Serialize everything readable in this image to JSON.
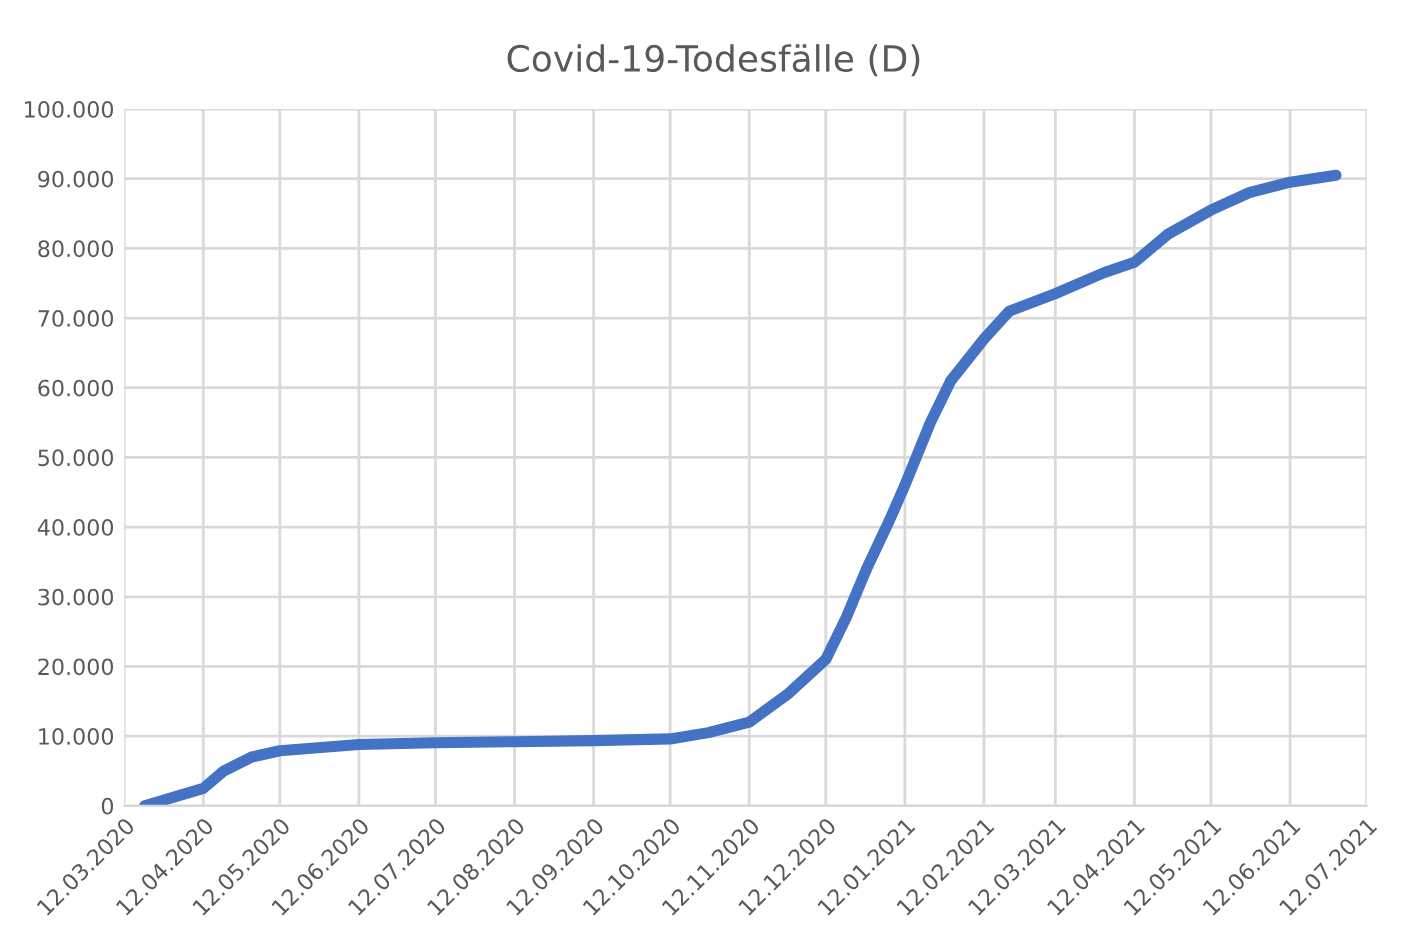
{
  "chart_data": {
    "type": "line",
    "title": "Covid-19-Todesfälle (D)",
    "x": [
      "2020-03-20",
      "2020-04-12",
      "2020-04-20",
      "2020-05-01",
      "2020-05-12",
      "2020-06-12",
      "2020-07-12",
      "2020-08-12",
      "2020-09-12",
      "2020-10-12",
      "2020-10-27",
      "2020-11-12",
      "2020-11-27",
      "2020-12-12",
      "2020-12-20",
      "2020-12-28",
      "2021-01-06",
      "2021-01-12",
      "2021-01-22",
      "2021-01-30",
      "2021-02-12",
      "2021-02-22",
      "2021-03-12",
      "2021-03-31",
      "2021-04-12",
      "2021-04-25",
      "2021-05-12",
      "2021-05-27",
      "2021-06-12",
      "2021-06-30"
    ],
    "series": [
      {
        "color": "#4472c4",
        "values": [
          0,
          2500,
          5000,
          7000,
          7900,
          8800,
          9050,
          9200,
          9350,
          9600,
          10500,
          12000,
          16000,
          21000,
          27000,
          34000,
          41000,
          46000,
          55000,
          61000,
          67000,
          71000,
          73500,
          76500,
          78000,
          82000,
          85500,
          88000,
          89500,
          90500
        ]
      }
    ],
    "xlim": [
      "2020-03-12",
      "2021-07-12"
    ],
    "xticks": [
      {
        "value": "2020-03-12",
        "label": "12.03.2020"
      },
      {
        "value": "2020-04-12",
        "label": "12.04.2020"
      },
      {
        "value": "2020-05-12",
        "label": "12.05.2020"
      },
      {
        "value": "2020-06-12",
        "label": "12.06.2020"
      },
      {
        "value": "2020-07-12",
        "label": "12.07.2020"
      },
      {
        "value": "2020-08-12",
        "label": "12.08.2020"
      },
      {
        "value": "2020-09-12",
        "label": "12.09.2020"
      },
      {
        "value": "2020-10-12",
        "label": "12.10.2020"
      },
      {
        "value": "2020-11-12",
        "label": "12.11.2020"
      },
      {
        "value": "2020-12-12",
        "label": "12.12.2020"
      },
      {
        "value": "2021-01-12",
        "label": "12.01.2021"
      },
      {
        "value": "2021-02-12",
        "label": "12.02.2021"
      },
      {
        "value": "2021-03-12",
        "label": "12.03.2021"
      },
      {
        "value": "2021-04-12",
        "label": "12.04.2021"
      },
      {
        "value": "2021-05-12",
        "label": "12.05.2021"
      },
      {
        "value": "2021-06-12",
        "label": "12.06.2021"
      },
      {
        "value": "2021-07-12",
        "label": "12.07.2021"
      }
    ],
    "ylim": [
      0,
      100000
    ],
    "yticks": [
      0,
      {
        "value": 10000,
        "label": "10.000"
      },
      {
        "value": 20000,
        "label": "20.000"
      },
      {
        "value": 30000,
        "label": "30.000"
      },
      {
        "value": 40000,
        "label": "40.000"
      },
      {
        "value": 50000,
        "label": "50.000"
      },
      {
        "value": 60000,
        "label": "60.000"
      },
      {
        "value": 70000,
        "label": "70.000"
      },
      {
        "value": 80000,
        "label": "80.000"
      },
      {
        "value": 90000,
        "label": "90.000"
      },
      {
        "value": 100000,
        "label": "100.000"
      }
    ],
    "grid": true,
    "line_style": "solid"
  }
}
